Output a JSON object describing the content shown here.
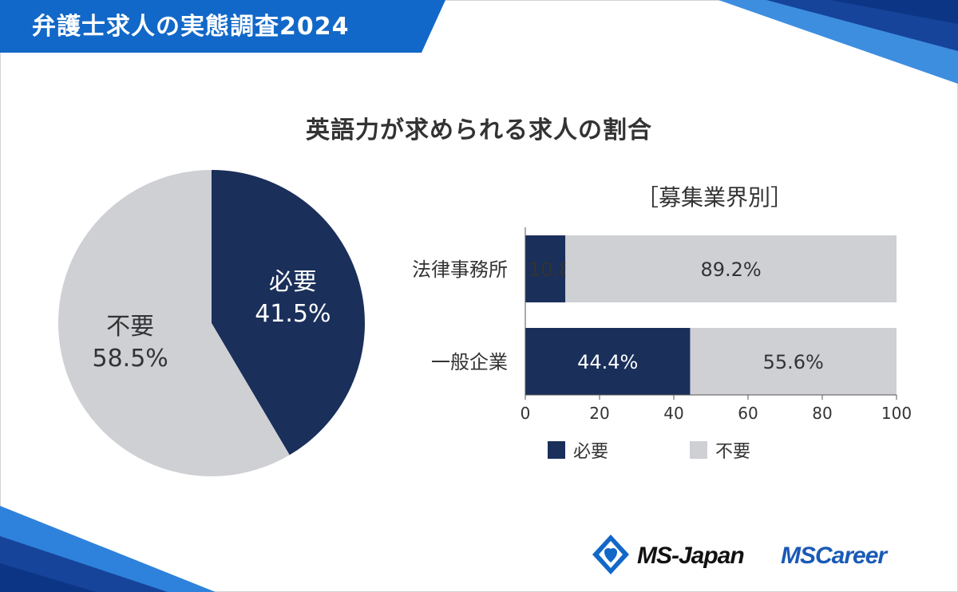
{
  "header": {
    "title": "弁護士求人の実態調査2024"
  },
  "main_title": "英語力が求められる求人の割合",
  "colors": {
    "needed": "#1a2f5a",
    "not_needed": "#cfd0d4",
    "brand_blue": "#1268c8",
    "dark_blue": "#15449a",
    "text": "#333333"
  },
  "logos": {
    "ms_japan": "MS-Japan",
    "ms_career": "MSCareer"
  },
  "chart_data": [
    {
      "type": "pie",
      "labels": [
        "必要",
        "不要"
      ],
      "values": [
        41.5,
        58.5
      ],
      "value_labels": [
        "41.5%",
        "58.5%"
      ],
      "colors": [
        "#1a2f5a",
        "#cfd0d4"
      ]
    },
    {
      "type": "bar",
      "orientation": "horizontal",
      "stacked": true,
      "title": "［募集業界別］",
      "categories": [
        "法律事務所",
        "一般企業"
      ],
      "series": [
        {
          "name": "必要",
          "values": [
            10.8,
            44.4
          ],
          "value_labels": [
            "10.8%",
            "44.4%"
          ],
          "color": "#1a2f5a"
        },
        {
          "name": "不要",
          "values": [
            89.2,
            55.6
          ],
          "value_labels": [
            "89.2%",
            "55.6%"
          ],
          "color": "#cfd0d4"
        }
      ],
      "xlim": [
        0,
        100
      ],
      "x_ticks": [
        "0",
        "20",
        "40",
        "60",
        "80",
        "100"
      ],
      "legend_position": "bottom"
    }
  ]
}
